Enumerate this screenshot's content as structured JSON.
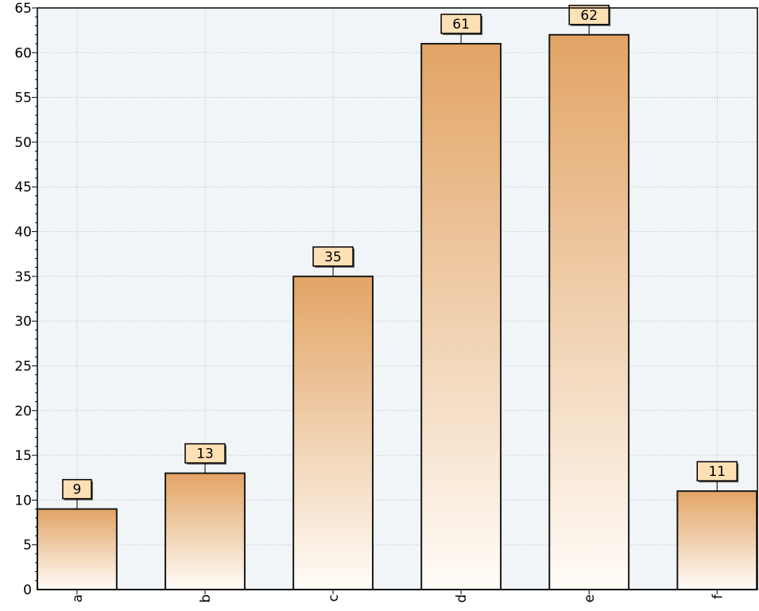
{
  "chart_data": {
    "type": "bar",
    "categories": [
      "a",
      "b",
      "c",
      "d",
      "e",
      "f"
    ],
    "values": [
      9,
      13,
      35,
      61,
      62,
      11
    ],
    "data_labels": [
      "9",
      "13",
      "35",
      "61",
      "62",
      "11"
    ],
    "y_ticks": [
      "0",
      "5",
      "10",
      "15",
      "20",
      "25",
      "30",
      "35",
      "40",
      "45",
      "50",
      "55",
      "60",
      "65"
    ],
    "ylim": [
      0,
      65
    ],
    "grid": true,
    "legend": "none",
    "colors": {
      "bar_top": "#e2a465",
      "bar_bottom": "#fffcf8",
      "bar_border": "#1a1a1a",
      "label_fill": "#fde0b4",
      "plot_background": "#f1f5f8",
      "grid": "#b9bcbf"
    }
  }
}
